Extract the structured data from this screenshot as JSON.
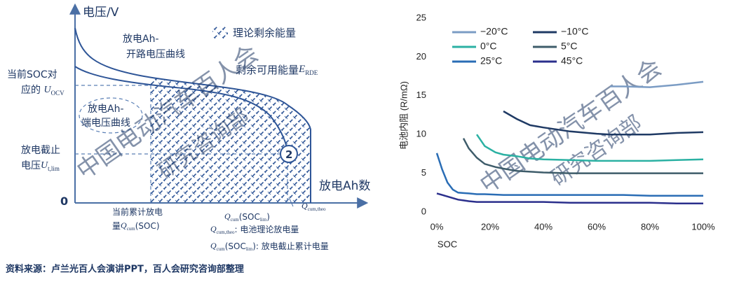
{
  "diagram": {
    "y_axis_label": "电压/V",
    "x_axis_label": "放电Ah数",
    "origin": "0",
    "legend_hatch": "理论剩余能量",
    "ocv_curve_label": [
      "放电Ah-",
      "开路电压曲线"
    ],
    "remaining_energy": {
      "text": "剩余可用能量",
      "symbol": "E",
      "sub": "RDE"
    },
    "current_ocv": {
      "lines": [
        "当前SOC对",
        "应的 "
      ],
      "symbol": "U",
      "sub": "OCV"
    },
    "terminal_curve_label": [
      "放电Ah-",
      "端电压曲线"
    ],
    "cutoff_voltage": {
      "lines": [
        "放电截止",
        "电压"
      ],
      "symbol": "U",
      "sub": "t,lim"
    },
    "region_marker": "2",
    "current_discharge": {
      "lines": [
        "当前累计放电",
        "量"
      ],
      "symbol": "Q",
      "sub": "cum",
      "suffix": "(SOC)"
    },
    "q_lim": {
      "symbol": "Q",
      "sub": "cum",
      "mid": "(SOC",
      "sub2": "lim",
      "suffix": ")"
    },
    "q_theo": {
      "symbol": "Q",
      "sub": "cum,theo"
    },
    "notes": [
      {
        "symbol": "Q",
        "sub": "cum,theo",
        "text": ":      电池理论放电量"
      },
      {
        "symbol": "Q",
        "sub": "cum",
        "mid": "(SOC",
        "sub2": "lim",
        "text": "): 放电截止累计电量"
      }
    ],
    "watermark": [
      "中国电动汽车百人会",
      "研究咨询部"
    ]
  },
  "chart_data": {
    "type": "line",
    "x_label": "SOC",
    "y_label": "电池内阻 (R/mΩ)",
    "x": [
      0,
      2,
      4,
      6,
      8,
      10,
      12,
      15,
      18,
      22,
      25,
      30,
      35,
      40,
      50,
      60,
      65,
      70,
      80,
      90,
      100
    ],
    "xlim": [
      0,
      100
    ],
    "xticks": [
      {
        "value": 0,
        "label": "0%"
      },
      {
        "value": 20,
        "label": "20%"
      },
      {
        "value": 40,
        "label": "40%"
      },
      {
        "value": 60,
        "label": "60%"
      },
      {
        "value": 80,
        "label": "80%"
      },
      {
        "value": 100,
        "label": "100%"
      }
    ],
    "ylim": [
      0,
      25
    ],
    "yticks": [
      0,
      5,
      10,
      15,
      20,
      25
    ],
    "grid": false,
    "legend": "upper left",
    "series": [
      {
        "name": "−20°C",
        "color": "#7b9cc4",
        "values": [
          null,
          null,
          null,
          null,
          null,
          null,
          null,
          null,
          null,
          null,
          null,
          null,
          null,
          null,
          null,
          null,
          16.2,
          16.2,
          16.1,
          16.4,
          16.8
        ]
      },
      {
        "name": "−10°C",
        "color": "#1f3a64",
        "values": [
          null,
          null,
          null,
          null,
          null,
          null,
          null,
          null,
          null,
          null,
          13,
          12,
          11.2,
          10.9,
          10.4,
          10.1,
          10.0,
          10.0,
          10.0,
          10.2,
          10.3
        ]
      },
      {
        "name": "0°C",
        "color": "#2bb1a3",
        "values": [
          null,
          null,
          null,
          null,
          null,
          null,
          null,
          10,
          8.5,
          7.7,
          7.4,
          7.2,
          6.9,
          6.8,
          6.7,
          6.6,
          6.6,
          6.6,
          6.6,
          6.7,
          6.8
        ]
      },
      {
        "name": "5°C",
        "color": "#3e5c6a",
        "values": [
          null,
          null,
          null,
          null,
          null,
          9.5,
          8.2,
          7,
          6.2,
          5.8,
          5.6,
          5.3,
          5.2,
          5.1,
          5.0,
          5.0,
          5.0,
          5.0,
          5.0,
          5.0,
          5.0
        ]
      },
      {
        "name": "25°C",
        "color": "#2a6db5",
        "values": [
          7.6,
          5.5,
          3.8,
          2.9,
          2.5,
          2.45,
          2.4,
          2.3,
          2.3,
          2.25,
          2.2,
          2.2,
          2.2,
          2.2,
          2.2,
          2.2,
          2.2,
          2.2,
          2.1,
          2.1,
          2.1
        ]
      },
      {
        "name": "45°C",
        "color": "#2b2f8c",
        "values": [
          2.4,
          2.2,
          2.0,
          1.8,
          1.6,
          1.5,
          1.4,
          1.3,
          1.3,
          1.3,
          1.3,
          1.3,
          1.3,
          1.3,
          1.2,
          1.2,
          1.2,
          1.2,
          1.2,
          1.1,
          1.1
        ]
      }
    ]
  },
  "source": "资料来源：卢兰光百人会演讲PPT，百人会研究咨询部整理"
}
